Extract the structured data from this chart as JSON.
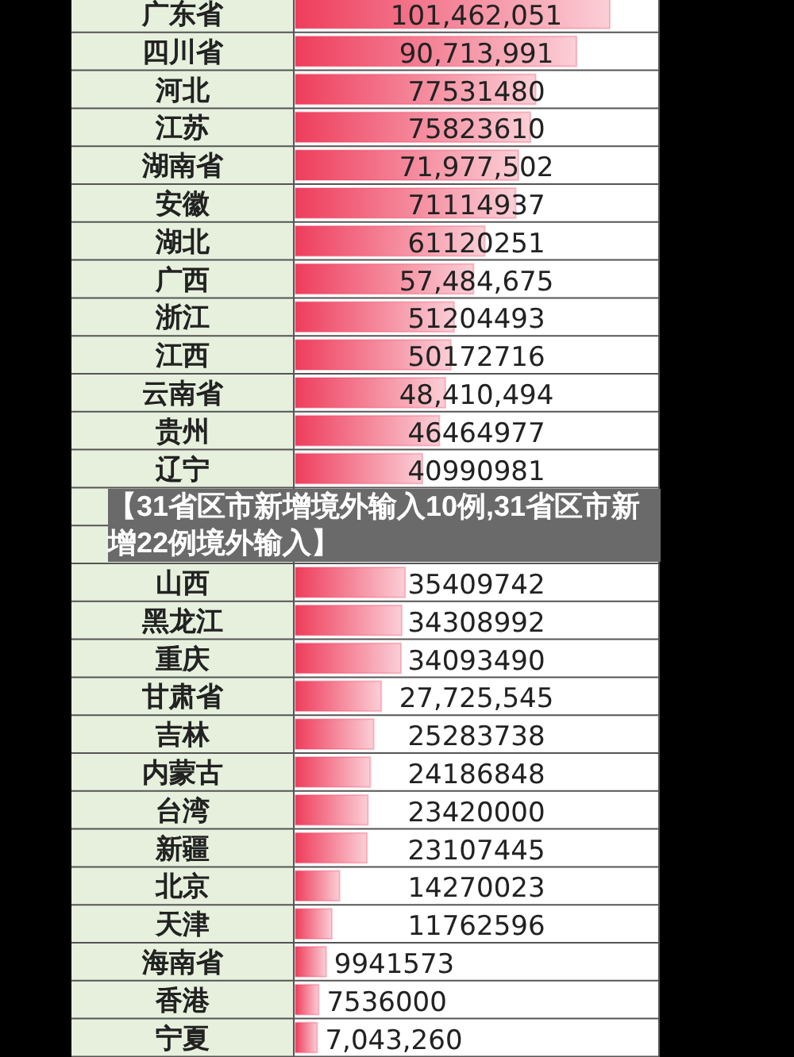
{
  "chart_data": {
    "type": "bar",
    "orientation": "horizontal",
    "color": "#ee3d5c",
    "categories": [
      "广东省",
      "四川省",
      "河北",
      "江苏",
      "湖南省",
      "安徽",
      "湖北",
      "广西",
      "浙江",
      "江西",
      "云南省",
      "贵州",
      "辽宁",
      null,
      null,
      "山西",
      "黑龙江",
      "重庆",
      "甘肃省",
      "吉林",
      "内蒙古",
      "台湾",
      "新疆",
      "北京",
      "天津",
      "海南省",
      "香港",
      "宁夏"
    ],
    "values": [
      101462051,
      90713991,
      77531480,
      75823610,
      71977502,
      71114937,
      61120251,
      57484675,
      51204493,
      50172716,
      48410494,
      46464977,
      40990981,
      null,
      null,
      35409742,
      34308992,
      34093490,
      27725545,
      25283738,
      24186848,
      23420000,
      23107445,
      14270023,
      11762596,
      9941573,
      7536000,
      7043260
    ],
    "value_labels": [
      "101,462,051",
      "90,713,991",
      "77531480",
      "75823610",
      "71,977,502",
      "71114937",
      "61120251",
      "57,484,675",
      "51204493",
      "50172716",
      "48,410,494",
      "46464977",
      "40990981",
      null,
      null,
      "35409742",
      "34308992",
      "34093490",
      "27,725,545",
      "25283738",
      "24186848",
      "23420000",
      "23107445",
      "14270023",
      "11762596",
      "9941573",
      "7536000",
      "7,043,260"
    ],
    "annotations": [
      "【31省区市新增境外输入10例,31省区市新增22例境外输入】"
    ]
  }
}
